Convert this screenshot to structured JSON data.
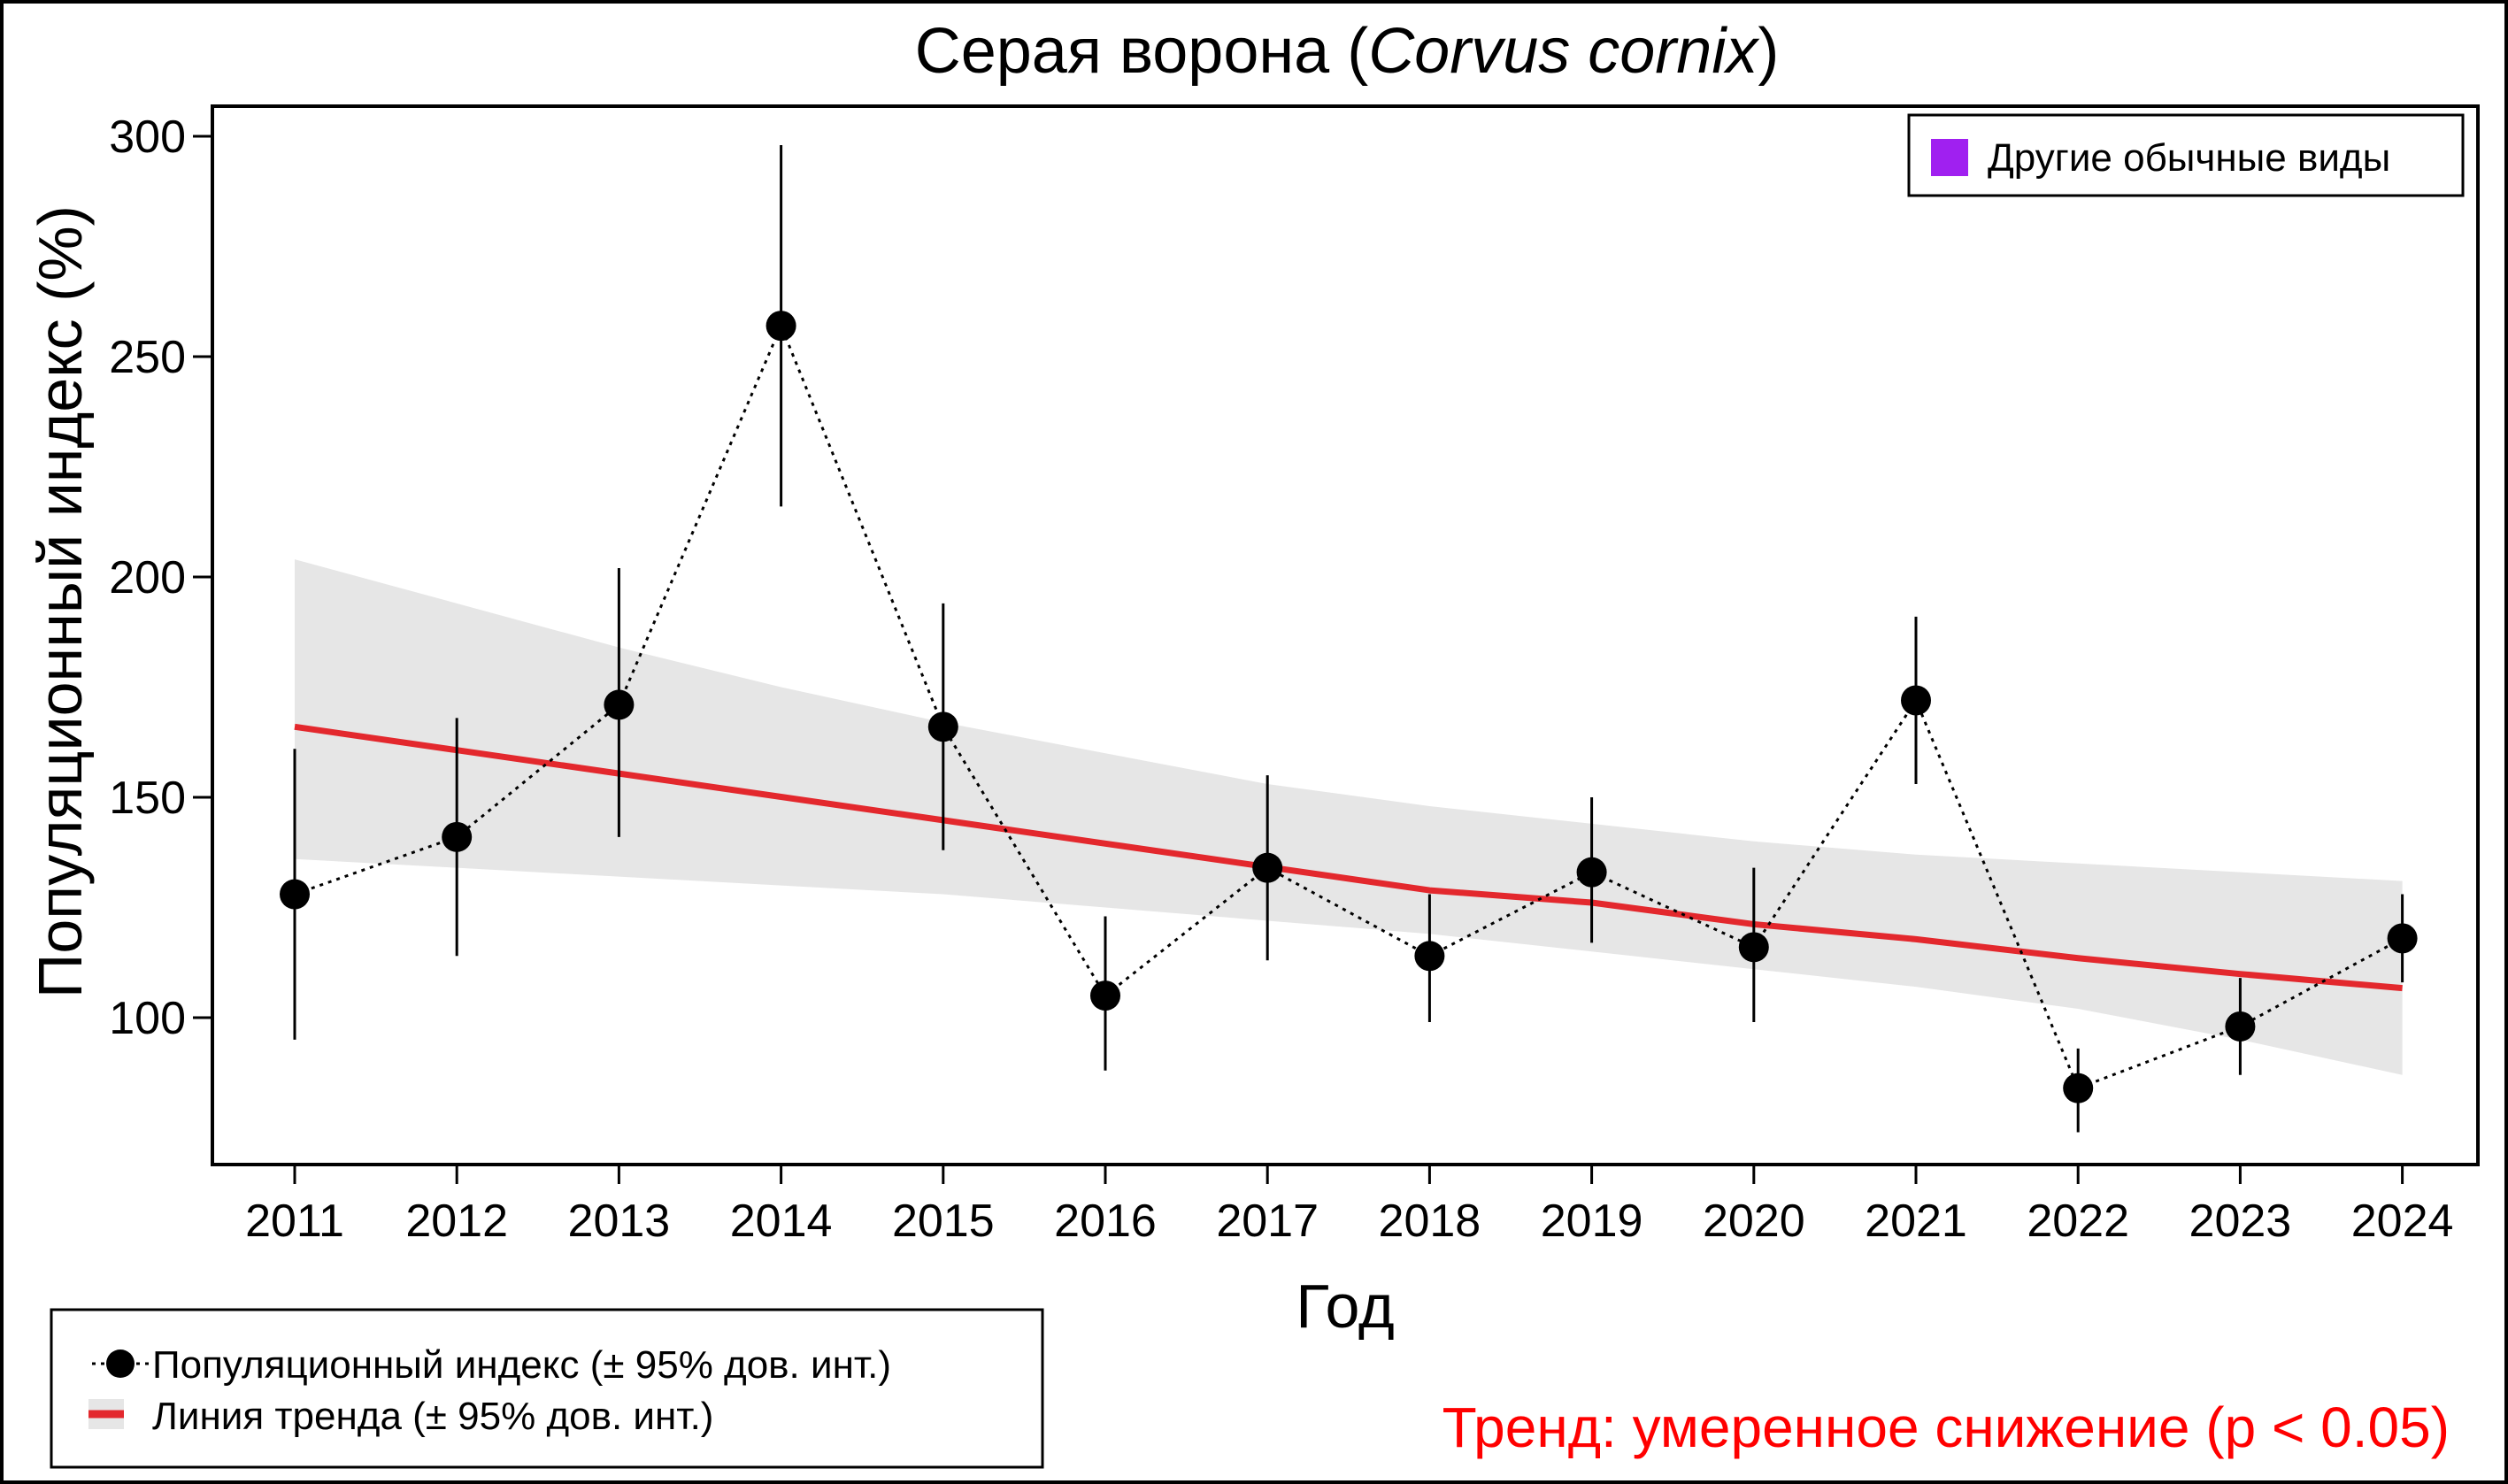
{
  "chart_data": {
    "type": "line",
    "title_main": "Серая ворона (",
    "title_species": "Corvus cornix",
    "title_close": ")",
    "xlabel": "Год",
    "ylabel": "Популяционный индекс (%)",
    "x": [
      "2011",
      "2012",
      "2013",
      "2014",
      "2015",
      "2016",
      "2017",
      "2018",
      "2019",
      "2020",
      "2021",
      "2022",
      "2023",
      "2024"
    ],
    "yticks": [
      "100",
      "150",
      "200",
      "250",
      "300"
    ],
    "ylim": [
      67,
      300
    ],
    "series": [
      {
        "name": "Популяционный индекс (± 95% дов. инт.)",
        "values": [
          128,
          141,
          171,
          257,
          166,
          105,
          134,
          114,
          133,
          116,
          172,
          84,
          98,
          118
        ],
        "ci_low": [
          95,
          114,
          141,
          216,
          138,
          88,
          113,
          99,
          117,
          99,
          153,
          74,
          87,
          108
        ],
        "ci_high": [
          161,
          168,
          202,
          298,
          194,
          123,
          155,
          128,
          150,
          134,
          191,
          93,
          109,
          128
        ],
        "color": "#000000"
      },
      {
        "name": "Линия тренда (± 95% дов. инт.)",
        "values": [
          166,
          160.7,
          155.4,
          150.1,
          144.8,
          139.5,
          134.2,
          128.9,
          126.1,
          121.2,
          117.8,
          113.5,
          109.9,
          106.7
        ],
        "ci_low": [
          136,
          134,
          132,
          130,
          128,
          125,
          122,
          119,
          115,
          111,
          107,
          102,
          95,
          87
        ],
        "ci_high": [
          204,
          194,
          184,
          175,
          167,
          160,
          153,
          148,
          144,
          140,
          137,
          135,
          133,
          131
        ],
        "color": "#e3282d",
        "band_color": "#e6e6e6"
      }
    ],
    "legend_tag": "Другие обычные виды",
    "legend_tag_color": "#a020f0",
    "legend_placement": "bottom-left",
    "trend_text": "Тренд: умеренное снижение (p < 0.05)",
    "trend_color": "#ff0000"
  }
}
